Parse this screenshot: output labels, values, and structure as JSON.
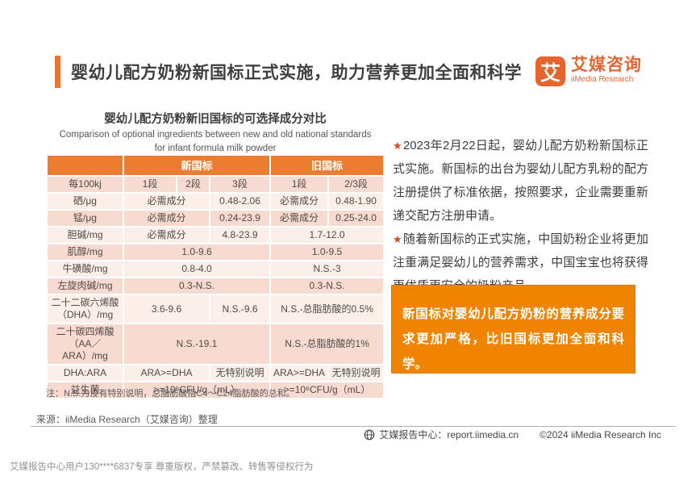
{
  "header": {
    "title": "婴幼儿配方奶粉新国标正式实施，助力营养更加全面和科学",
    "logo": {
      "mark": "艾",
      "name_cn": "艾媒咨询",
      "name_en": "iiMedia Research"
    }
  },
  "table_section": {
    "title": "婴幼儿配方奶粉新旧国标的可选择成分对比",
    "subtitle_en_line1": "Comparison of optional ingredients between new and old national standards",
    "subtitle_en_line2": "for infant formula milk powder",
    "group_header": {
      "blank": "",
      "new": "新国标",
      "old": "旧国标"
    },
    "rows": [
      {
        "shade": "a",
        "cells": [
          {
            "t": "每100kj"
          },
          {
            "t": "1段"
          },
          {
            "t": "2段"
          },
          {
            "t": "3段"
          },
          {
            "t": "1段"
          },
          {
            "t": "2/3段"
          }
        ]
      },
      {
        "shade": "b",
        "cells": [
          {
            "t": "硒/μg"
          },
          {
            "t": "必需成分",
            "c": 2
          },
          {
            "t": "0.48-2.06"
          },
          {
            "t": "必需成分"
          },
          {
            "t": "0.48-1.90"
          }
        ]
      },
      {
        "shade": "a",
        "cells": [
          {
            "t": "锰/μg"
          },
          {
            "t": "必需成分",
            "c": 2
          },
          {
            "t": "0.24-23.9"
          },
          {
            "t": "必需成分"
          },
          {
            "t": "0.25-24.0"
          }
        ]
      },
      {
        "shade": "b",
        "cells": [
          {
            "t": "胆碱/mg"
          },
          {
            "t": "必需成分",
            "c": 2
          },
          {
            "t": "4.8-23.9"
          },
          {
            "t": "1.7-12.0",
            "c": 2
          }
        ]
      },
      {
        "shade": "a",
        "cells": [
          {
            "t": "肌醇/mg"
          },
          {
            "t": "1.0-9.6",
            "c": 3
          },
          {
            "t": "1.0-9.5",
            "c": 2
          }
        ]
      },
      {
        "shade": "b",
        "cells": [
          {
            "t": "牛磺酸/mg"
          },
          {
            "t": "0.8-4.0",
            "c": 3
          },
          {
            "t": "N.S.-3",
            "c": 2
          }
        ]
      },
      {
        "shade": "a",
        "cells": [
          {
            "t": "左旋肉碱/mg"
          },
          {
            "t": "0.3-N.S.",
            "c": 3
          },
          {
            "t": "0.3-N.S.",
            "c": 2
          }
        ]
      },
      {
        "shade": "b",
        "cells": [
          {
            "t": "二十二碳六烯酸（DHA）/mg"
          },
          {
            "t": "3.6-9.6",
            "c": 2
          },
          {
            "t": "N.S.-9.6"
          },
          {
            "t": "N.S.-总脂肪酸的0.5%",
            "c": 2
          }
        ]
      },
      {
        "shade": "a",
        "cells": [
          {
            "t": "二十碳四烯酸（AA／ARA）/mg"
          },
          {
            "t": "N.S.-19.1",
            "c": 3
          },
          {
            "t": "N.S.-总脂肪酸的1%",
            "c": 2
          }
        ]
      },
      {
        "shade": "b",
        "cells": [
          {
            "t": "DHA:ARA"
          },
          {
            "t": "ARA>=DHA",
            "c": 2
          },
          {
            "t": "无特别说明"
          },
          {
            "t": "ARA>=DHA"
          },
          {
            "t": "无特别说明"
          }
        ]
      },
      {
        "shade": "a",
        "cells": [
          {
            "t": "益生菌"
          },
          {
            "t": ">=10⁶CFU/g（mL）",
            "c": 3
          },
          {
            "t": ">=10⁶CFU/g（mL）",
            "c": 2
          }
        ]
      }
    ]
  },
  "note": "注：N.S.为没有特别说明，总脂肪酸指C4～C24脂肪酸的总和。",
  "source": "来源：iiMedia Research（艾媒咨询）整理",
  "insights": [
    {
      "bullet": "★",
      "text": "2023年2月22日起，婴幼儿配方奶粉新国标正式实施。新国标的出台为婴幼儿配方乳粉的配方注册提供了标准依据，按照要求，企业需要重新递交配方注册申请。"
    },
    {
      "bullet": "★",
      "text": "随着新国标的正式实施，中国奶粉企业将更加注重满足婴幼儿的营养需求，中国宝宝也将获得更优质更安全的奶粉产品。"
    }
  ],
  "callout": "新国标对婴幼儿配方奶粉的营养成分要求更加严格，比旧国标更加全面和科学。",
  "footer": {
    "site": "艾媒报告中心：report.iimedia.cn",
    "copyright": "©2024 iiMedia Research Inc"
  },
  "watermark": "艾媒报告中心用户130****6837专享 尊重版权，严禁篡改、转售等侵权行为",
  "colors": {
    "accent_orange": "#ED7431",
    "table_header_orange": "#EC7C30",
    "callout_orange": "#F08300",
    "row_pink": "#F7DAD0",
    "row_light": "#FCEFE9",
    "star_red": "#CB4B28",
    "logo_orange": "#E4662E"
  }
}
